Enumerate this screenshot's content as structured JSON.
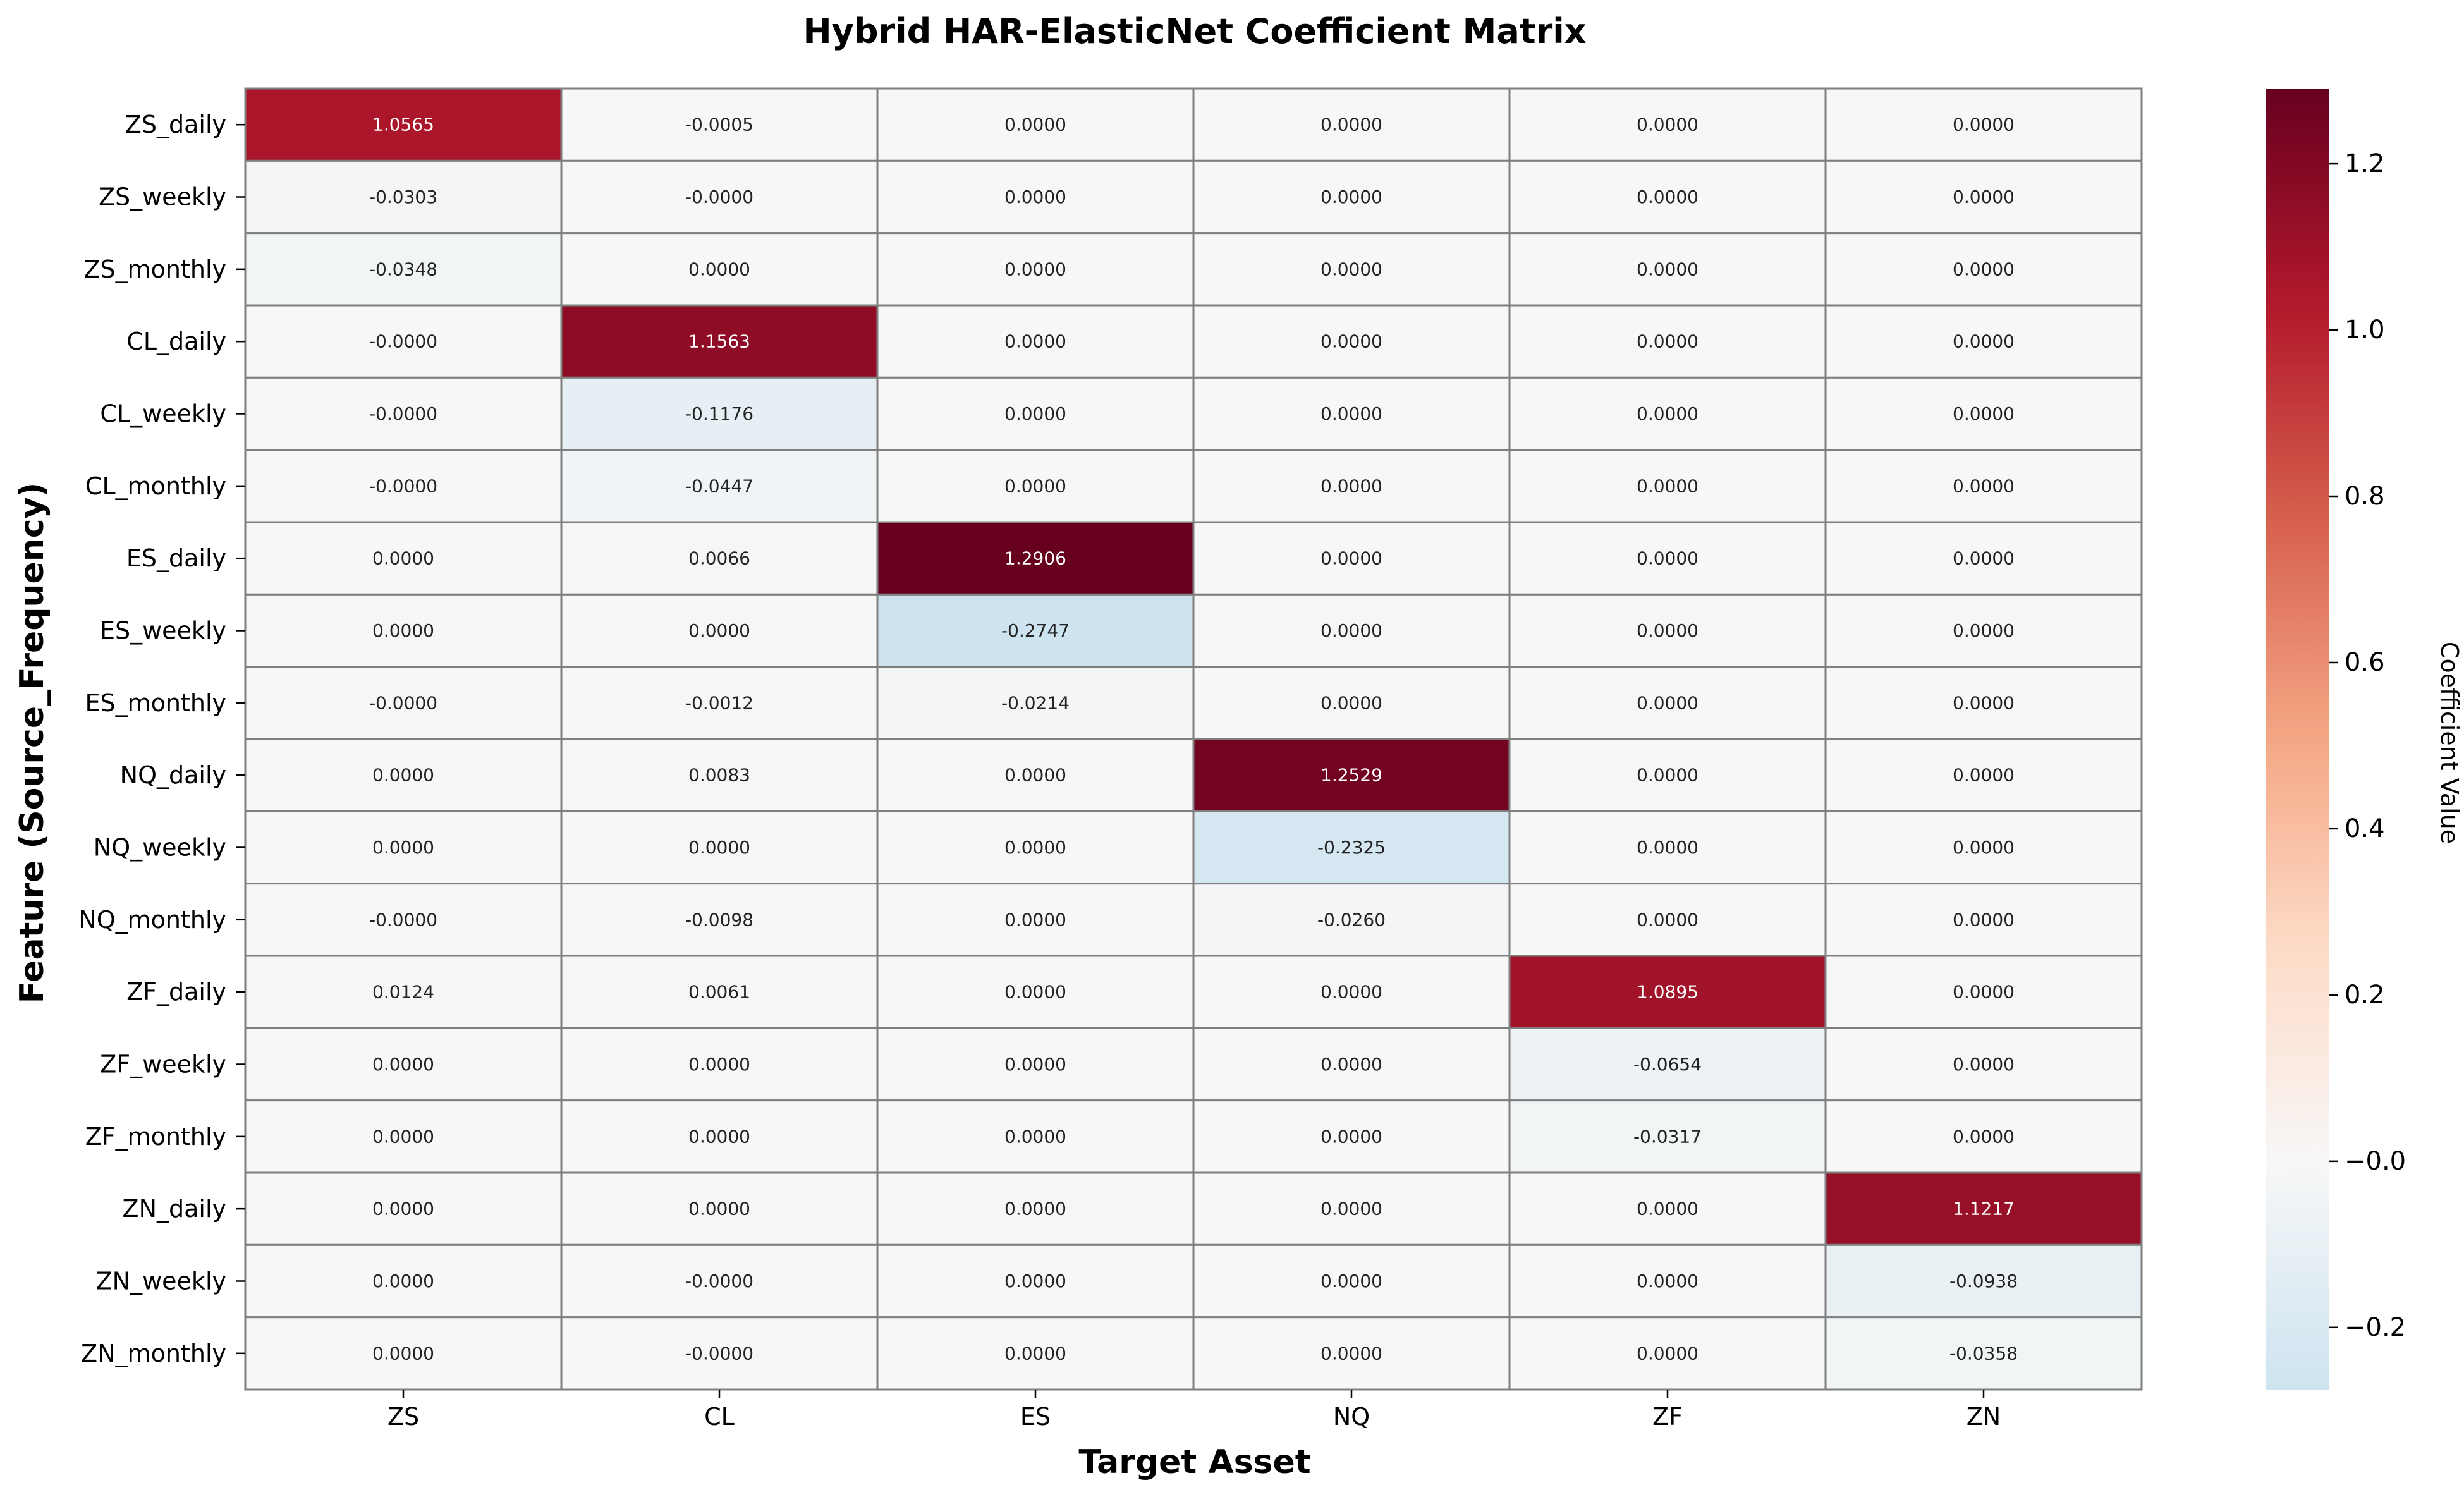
{
  "chart_data": {
    "type": "heatmap",
    "title": "Hybrid HAR-ElasticNet Coefficient Matrix",
    "xlabel": "Target Asset",
    "ylabel": "Feature (Source_Frequency)",
    "columns": [
      "ZS",
      "CL",
      "ES",
      "NQ",
      "ZF",
      "ZN"
    ],
    "rows": [
      "ZS_daily",
      "ZS_weekly",
      "ZS_monthly",
      "CL_daily",
      "CL_weekly",
      "CL_monthly",
      "ES_daily",
      "ES_weekly",
      "ES_monthly",
      "NQ_daily",
      "NQ_weekly",
      "NQ_monthly",
      "ZF_daily",
      "ZF_weekly",
      "ZF_monthly",
      "ZN_daily",
      "ZN_weekly",
      "ZN_monthly"
    ],
    "values": [
      [
        1.0565,
        -0.0005,
        0.0,
        0.0,
        0.0,
        0.0
      ],
      [
        -0.0303,
        -0.0,
        0.0,
        0.0,
        0.0,
        0.0
      ],
      [
        -0.0348,
        0.0,
        0.0,
        0.0,
        0.0,
        0.0
      ],
      [
        -0.0,
        1.1563,
        0.0,
        0.0,
        0.0,
        0.0
      ],
      [
        -0.0,
        -0.1176,
        0.0,
        0.0,
        0.0,
        0.0
      ],
      [
        -0.0,
        -0.0447,
        0.0,
        0.0,
        0.0,
        0.0
      ],
      [
        0.0,
        0.0066,
        1.2906,
        0.0,
        0.0,
        0.0
      ],
      [
        0.0,
        0.0,
        -0.2747,
        0.0,
        0.0,
        0.0
      ],
      [
        -0.0,
        -0.0012,
        -0.0214,
        0.0,
        0.0,
        0.0
      ],
      [
        0.0,
        0.0083,
        0.0,
        1.2529,
        0.0,
        0.0
      ],
      [
        0.0,
        0.0,
        0.0,
        -0.2325,
        0.0,
        0.0
      ],
      [
        -0.0,
        -0.0098,
        0.0,
        -0.026,
        0.0,
        0.0
      ],
      [
        0.0124,
        0.0061,
        0.0,
        0.0,
        1.0895,
        0.0
      ],
      [
        0.0,
        0.0,
        0.0,
        0.0,
        -0.0654,
        0.0
      ],
      [
        0.0,
        0.0,
        0.0,
        0.0,
        -0.0317,
        0.0
      ],
      [
        0.0,
        0.0,
        0.0,
        0.0,
        0.0,
        1.1217
      ],
      [
        0.0,
        -0.0,
        0.0,
        0.0,
        0.0,
        -0.0938
      ],
      [
        0.0,
        -0.0,
        0.0,
        0.0,
        0.0,
        -0.0358
      ]
    ],
    "labels": [
      [
        "1.0565",
        "-0.0005",
        "0.0000",
        "0.0000",
        "0.0000",
        "0.0000"
      ],
      [
        "-0.0303",
        "-0.0000",
        "0.0000",
        "0.0000",
        "0.0000",
        "0.0000"
      ],
      [
        "-0.0348",
        "0.0000",
        "0.0000",
        "0.0000",
        "0.0000",
        "0.0000"
      ],
      [
        "-0.0000",
        "1.1563",
        "0.0000",
        "0.0000",
        "0.0000",
        "0.0000"
      ],
      [
        "-0.0000",
        "-0.1176",
        "0.0000",
        "0.0000",
        "0.0000",
        "0.0000"
      ],
      [
        "-0.0000",
        "-0.0447",
        "0.0000",
        "0.0000",
        "0.0000",
        "0.0000"
      ],
      [
        "0.0000",
        "0.0066",
        "1.2906",
        "0.0000",
        "0.0000",
        "0.0000"
      ],
      [
        "0.0000",
        "0.0000",
        "-0.2747",
        "0.0000",
        "0.0000",
        "0.0000"
      ],
      [
        "-0.0000",
        "-0.0012",
        "-0.0214",
        "0.0000",
        "0.0000",
        "0.0000"
      ],
      [
        "0.0000",
        "0.0083",
        "0.0000",
        "1.2529",
        "0.0000",
        "0.0000"
      ],
      [
        "0.0000",
        "0.0000",
        "0.0000",
        "-0.2325",
        "0.0000",
        "0.0000"
      ],
      [
        "-0.0000",
        "-0.0098",
        "0.0000",
        "-0.0260",
        "0.0000",
        "0.0000"
      ],
      [
        "0.0124",
        "0.0061",
        "0.0000",
        "0.0000",
        "1.0895",
        "0.0000"
      ],
      [
        "0.0000",
        "0.0000",
        "0.0000",
        "0.0000",
        "-0.0654",
        "0.0000"
      ],
      [
        "0.0000",
        "0.0000",
        "0.0000",
        "0.0000",
        "-0.0317",
        "0.0000"
      ],
      [
        "0.0000",
        "0.0000",
        "0.0000",
        "0.0000",
        "0.0000",
        "1.1217"
      ],
      [
        "0.0000",
        "-0.0000",
        "0.0000",
        "0.0000",
        "0.0000",
        "-0.0938"
      ],
      [
        "0.0000",
        "-0.0000",
        "0.0000",
        "0.0000",
        "0.0000",
        "-0.0358"
      ]
    ],
    "colormap": "RdBu_r",
    "center": 0.0,
    "vmin": -0.2747,
    "vmax": 1.2906,
    "colorbar": {
      "label": "Coefficient Value",
      "ticks": [
        -0.2,
        0.0,
        0.2,
        0.4,
        0.6,
        0.8,
        1.0,
        1.2
      ],
      "tick_labels": [
        "−0.2",
        "−0.0",
        "0.2",
        "0.4",
        "0.6",
        "0.8",
        "1.0",
        "1.2"
      ]
    },
    "colors": {
      "cell_border": "#7f7f7f",
      "text_dark": "#222222",
      "text_light": "#ffffff"
    }
  }
}
